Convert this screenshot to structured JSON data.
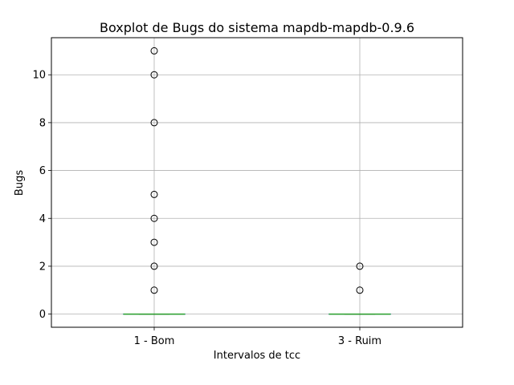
{
  "chart_data": {
    "type": "box",
    "title": "Boxplot de Bugs do sistema mapdb-mapdb-0.9.6",
    "xlabel": "Intervalos de tcc",
    "ylabel": "Bugs",
    "categories": [
      "1 - Bom",
      "3 - Ruim"
    ],
    "ylim": [
      -0.55,
      11.55
    ],
    "yticks": [
      0,
      2,
      4,
      6,
      8,
      10
    ],
    "grid": true,
    "boxes": [
      {
        "category": "1 - Bom",
        "min": 0,
        "q1": 0,
        "median": 0,
        "q3": 0,
        "max": 0,
        "outliers": [
          1,
          2,
          3,
          4,
          5,
          8,
          10,
          11
        ]
      },
      {
        "category": "3 - Ruim",
        "min": 0,
        "q1": 0,
        "median": 0,
        "q3": 0,
        "max": 0,
        "outliers": [
          1,
          2
        ]
      }
    ],
    "colors": {
      "box": "#1f77b4",
      "median": "#2ca02c",
      "grid": "#b0b0b0",
      "outlier_edge": "#000000"
    }
  }
}
